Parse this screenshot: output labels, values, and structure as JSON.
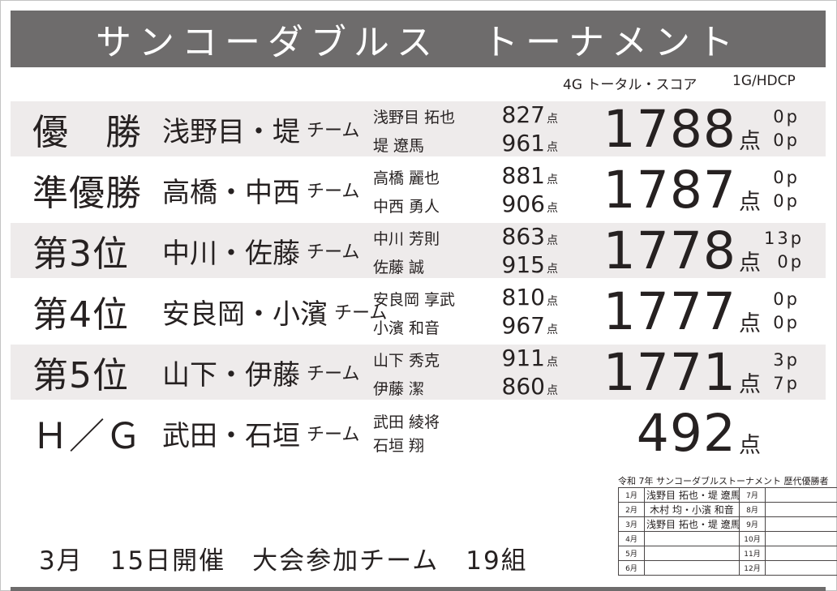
{
  "page": {
    "title": "サンコーダブルス　トーナメント",
    "accent_color": "#6e6c6c",
    "band_color": "#eeebeb"
  },
  "columns": {
    "total_header": "4G トータル・スコア",
    "hdcp_header": "1G/HDCP"
  },
  "labels": {
    "team_suffix": "チーム",
    "points_unit": "点"
  },
  "results": [
    {
      "rank": "優　勝",
      "team": "浅野目・堤",
      "players": [
        {
          "name": "浅野目 拓也",
          "score": "827",
          "unit": "点"
        },
        {
          "name": "堤 遼馬",
          "score": "961",
          "unit": "点"
        }
      ],
      "total": "1788",
      "total_unit": "点",
      "hdcp": [
        "0p",
        "0p"
      ]
    },
    {
      "rank": "準優勝",
      "team": "高橋・中西",
      "players": [
        {
          "name": "高橋 麗也",
          "score": "881",
          "unit": "点"
        },
        {
          "name": "中西 勇人",
          "score": "906",
          "unit": "点"
        }
      ],
      "total": "1787",
      "total_unit": "点",
      "hdcp": [
        "0p",
        "0p"
      ]
    },
    {
      "rank": "第3位",
      "team": "中川・佐藤",
      "players": [
        {
          "name": "中川 芳則",
          "score": "863",
          "unit": "点"
        },
        {
          "name": "佐藤 誠",
          "score": "915",
          "unit": "点"
        }
      ],
      "total": "1778",
      "total_unit": "点",
      "hdcp": [
        "13p",
        "0p"
      ]
    },
    {
      "rank": "第4位",
      "team": "安良岡・小濱",
      "players": [
        {
          "name": "安良岡 享武",
          "score": "810",
          "unit": "点"
        },
        {
          "name": "小濱 和音",
          "score": "967",
          "unit": "点"
        }
      ],
      "total": "1777",
      "total_unit": "点",
      "hdcp": [
        "0p",
        "0p"
      ]
    },
    {
      "rank": "第5位",
      "team": "山下・伊藤",
      "players": [
        {
          "name": "山下 秀克",
          "score": "911",
          "unit": "点"
        },
        {
          "name": "伊藤 潔",
          "score": "860",
          "unit": "点"
        }
      ],
      "total": "1771",
      "total_unit": "点",
      "hdcp": [
        "3p",
        "7p"
      ]
    },
    {
      "rank": "Ｈ／Ｇ",
      "team": "武田・石垣",
      "players": [
        {
          "name": "武田 綾将"
        },
        {
          "name": "石垣 翔"
        }
      ],
      "total": "492",
      "total_unit": "点",
      "hdcp": []
    }
  ],
  "footer": {
    "text": "3月　15日開催　大会参加チーム　19組"
  },
  "history": {
    "title": "令和 7年 サンコーダブルストーナメント 歴代優勝者",
    "rows": [
      [
        "1月",
        "浅野目 拓也・堤 遼馬",
        "7月",
        ""
      ],
      [
        "2月",
        "木村 均・小濱 和音",
        "8月",
        ""
      ],
      [
        "3月",
        "浅野目 拓也・堤 遼馬",
        "9月",
        ""
      ],
      [
        "4月",
        "",
        "10月",
        ""
      ],
      [
        "5月",
        "",
        "11月",
        ""
      ],
      [
        "6月",
        "",
        "12月",
        ""
      ]
    ]
  }
}
